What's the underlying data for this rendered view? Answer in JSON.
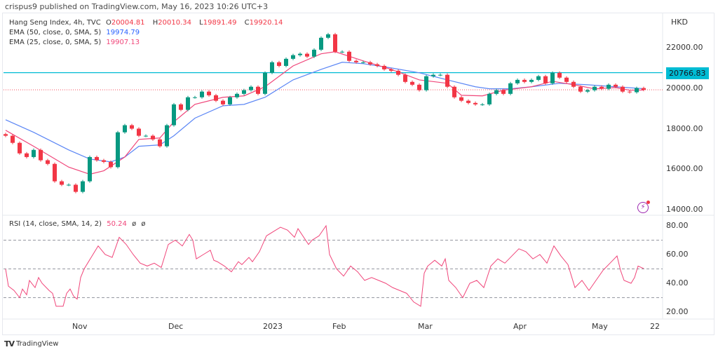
{
  "published": "crispus9 published on TradingView.com, May 16, 2023 10:26 UTC+3",
  "legend": {
    "symbol": "Hang Seng Index, 4h, TVC",
    "o_label": "O",
    "o": "20004.81",
    "h_label": "H",
    "h": "20010.34",
    "l_label": "L",
    "l": "19891.49",
    "c_label": "C",
    "c": "19920.14",
    "ema50_label": "EMA (50, close, 0, SMA, 5)",
    "ema50_value": "19974.79",
    "ema25_label": "EMA (25, close, 0, SMA, 5)",
    "ema25_value": "19907.13",
    "rsi_label": "RSI (14, close, SMA, 14, 2)",
    "rsi_value": "50.24",
    "rsi_extra1": "ø",
    "rsi_extra2": "ø"
  },
  "currency": "HKD",
  "horizontal_line": {
    "value": 20766.83,
    "label": "20766.83",
    "color": "#00bcd4"
  },
  "brand": "TradingView",
  "colors": {
    "up": "#089981",
    "down": "#f23645",
    "ema50": "#5b86f5",
    "ema25": "#f0467a",
    "rsi": "#f0467a"
  },
  "chart_data": [
    {
      "type": "candlestick",
      "title": "Hang Seng Index, 4h, TVC",
      "ylim": [
        14000,
        22600
      ],
      "yticks": [
        "22000.00",
        "20000.00",
        "18000.00",
        "16000.00",
        "14000.00"
      ],
      "ytick_values": [
        22000,
        20000,
        18000,
        16000,
        14000
      ],
      "xticks": [
        {
          "label": "Nov",
          "bar": 10.5
        },
        {
          "label": "Dec",
          "bar": 24.2
        },
        {
          "label": "2023",
          "bar": 37.7
        },
        {
          "label": "Feb",
          "bar": 47.6
        },
        {
          "label": "Mar",
          "bar": 59.8
        },
        {
          "label": "Apr",
          "bar": 73.4
        },
        {
          "label": "May",
          "bar": 84.6
        },
        {
          "label": "22",
          "bar": 92.9
        }
      ],
      "closes": [
        17650,
        17300,
        16780,
        16600,
        16950,
        16440,
        16260,
        15400,
        15230,
        15230,
        14880,
        15400,
        16600,
        16440,
        16360,
        16100,
        17820,
        18170,
        18000,
        17650,
        17650,
        17470,
        17130,
        18170,
        19200,
        18930,
        19550,
        19550,
        19830,
        19650,
        19380,
        19200,
        19550,
        19720,
        19900,
        20070,
        19720,
        20760,
        21280,
        21100,
        21450,
        21630,
        21700,
        21560,
        21900,
        22490,
        22660,
        21800,
        21800,
        21350,
        21280,
        21280,
        21180,
        21100,
        20930,
        20860,
        20660,
        20310,
        20170,
        19900,
        20590,
        20660,
        20660,
        20070,
        19550,
        19380,
        19270,
        19200,
        19200,
        19720,
        19900,
        19720,
        20240,
        20410,
        20310,
        20410,
        20590,
        20240,
        20760,
        20520,
        20310,
        20070,
        19830,
        19900,
        20070,
        19970,
        20170,
        20070,
        19830,
        19800,
        20004.81,
        19920.14
      ],
      "series": [
        {
          "name": "EMA (50, close, 0, SMA, 5)",
          "points": [
            [
              0,
              18440
            ],
            [
              4,
              17820
            ],
            [
              9,
              16950
            ],
            [
              12,
              16500
            ],
            [
              15,
              16360
            ],
            [
              17,
              16600
            ],
            [
              19,
              17130
            ],
            [
              22,
              17200
            ],
            [
              24,
              17650
            ],
            [
              27,
              18520
            ],
            [
              31,
              19130
            ],
            [
              34,
              19200
            ],
            [
              37,
              19550
            ],
            [
              41,
              20410
            ],
            [
              45,
              20930
            ],
            [
              48,
              21280
            ],
            [
              51,
              21210
            ],
            [
              55,
              21000
            ],
            [
              59,
              20760
            ],
            [
              63,
              20410
            ],
            [
              67,
              20070
            ],
            [
              69,
              19970
            ],
            [
              72,
              19970
            ],
            [
              75,
              20070
            ],
            [
              79,
              20240
            ],
            [
              83,
              20170
            ],
            [
              87,
              20070
            ],
            [
              91,
              19974.79
            ]
          ]
        },
        {
          "name": "EMA (25, close, 0, SMA, 5)",
          "points": [
            [
              0,
              17920
            ],
            [
              4,
              17130
            ],
            [
              9,
              16100
            ],
            [
              12,
              15750
            ],
            [
              14,
              15920
            ],
            [
              17,
              16600
            ],
            [
              19,
              17470
            ],
            [
              22,
              17540
            ],
            [
              24,
              18340
            ],
            [
              27,
              19200
            ],
            [
              31,
              19550
            ],
            [
              34,
              19620
            ],
            [
              37,
              20070
            ],
            [
              41,
              21100
            ],
            [
              45,
              21700
            ],
            [
              47,
              21800
            ],
            [
              51,
              21350
            ],
            [
              55,
              20930
            ],
            [
              59,
              20410
            ],
            [
              63,
              20240
            ],
            [
              65,
              19650
            ],
            [
              68,
              19620
            ],
            [
              71,
              19900
            ],
            [
              75,
              20070
            ],
            [
              78,
              20340
            ],
            [
              81,
              20170
            ],
            [
              84,
              19970
            ],
            [
              87,
              20030
            ],
            [
              89,
              19900
            ],
            [
              91,
              19907.13
            ]
          ]
        }
      ]
    },
    {
      "type": "line",
      "title": "RSI (14, close, SMA, 14, 2)",
      "ylim": [
        15,
        85
      ],
      "yticks": [
        "80.00",
        "60.00",
        "40.00",
        "20.00"
      ],
      "ytick_values": [
        80,
        60,
        40,
        20
      ],
      "dashed_levels": [
        70,
        50,
        30
      ],
      "series": [
        {
          "name": "RSI",
          "points": [
            [
              0,
              50
            ],
            [
              0.4,
              38
            ],
            [
              1.2,
              35
            ],
            [
              2,
              30
            ],
            [
              2.4,
              36
            ],
            [
              3,
              32
            ],
            [
              3.4,
              42
            ],
            [
              4.2,
              37
            ],
            [
              4.7,
              44
            ],
            [
              5.2,
              40
            ],
            [
              6.2,
              35
            ],
            [
              6.7,
              33
            ],
            [
              7.2,
              24
            ],
            [
              8.2,
              24
            ],
            [
              8.7,
              33
            ],
            [
              9.2,
              36
            ],
            [
              9.7,
              31
            ],
            [
              10.2,
              29
            ],
            [
              10.7,
              44
            ],
            [
              11.2,
              50
            ],
            [
              12.2,
              58
            ],
            [
              13.2,
              66
            ],
            [
              14.2,
              60
            ],
            [
              15.2,
              58
            ],
            [
              16.2,
              72
            ],
            [
              17.2,
              67
            ],
            [
              18.2,
              60
            ],
            [
              19.2,
              54
            ],
            [
              20.2,
              52
            ],
            [
              21.2,
              54
            ],
            [
              22.2,
              51
            ],
            [
              23.2,
              67
            ],
            [
              24.2,
              70
            ],
            [
              25.2,
              66
            ],
            [
              26.2,
              74
            ],
            [
              26.7,
              70
            ],
            [
              27.2,
              57
            ],
            [
              28.2,
              60
            ],
            [
              29.2,
              63
            ],
            [
              29.7,
              56
            ],
            [
              30.2,
              55
            ],
            [
              31.2,
              52
            ],
            [
              32.2,
              48
            ],
            [
              33.2,
              55
            ],
            [
              33.7,
              53
            ],
            [
              34.7,
              58
            ],
            [
              35.2,
              55
            ],
            [
              36.2,
              62
            ],
            [
              37.2,
              73
            ],
            [
              38.2,
              76
            ],
            [
              39.2,
              79
            ],
            [
              40.2,
              77
            ],
            [
              41.2,
              72
            ],
            [
              41.7,
              78
            ],
            [
              43.2,
              67
            ],
            [
              43.7,
              70
            ],
            [
              44.7,
              73
            ],
            [
              45.7,
              80
            ],
            [
              46.2,
              60
            ],
            [
              47.2,
              50
            ],
            [
              48.2,
              45
            ],
            [
              49.2,
              52
            ],
            [
              50.2,
              48
            ],
            [
              51.2,
              42
            ],
            [
              52.2,
              44
            ],
            [
              53.2,
              42
            ],
            [
              54.2,
              40
            ],
            [
              55.2,
              37
            ],
            [
              56.2,
              35
            ],
            [
              57.2,
              33
            ],
            [
              58.2,
              27
            ],
            [
              59.2,
              24
            ],
            [
              59.7,
              47
            ],
            [
              60.2,
              52
            ],
            [
              61.2,
              56
            ],
            [
              62.2,
              52
            ],
            [
              62.7,
              57
            ],
            [
              63.2,
              42
            ],
            [
              64.2,
              37
            ],
            [
              65.2,
              30
            ],
            [
              66.2,
              40
            ],
            [
              67.2,
              42
            ],
            [
              68.2,
              37
            ],
            [
              69.2,
              52
            ],
            [
              70.2,
              57
            ],
            [
              71.2,
              54
            ],
            [
              72.2,
              59
            ],
            [
              73.2,
              64
            ],
            [
              74.2,
              62
            ],
            [
              75.2,
              57
            ],
            [
              76.2,
              60
            ],
            [
              77.2,
              54
            ],
            [
              78.2,
              66
            ],
            [
              79.2,
              59
            ],
            [
              80.2,
              53
            ],
            [
              81.2,
              37
            ],
            [
              82.2,
              42
            ],
            [
              83.2,
              35
            ],
            [
              84.2,
              42
            ],
            [
              85.2,
              49
            ],
            [
              86.2,
              54
            ],
            [
              87.2,
              59
            ],
            [
              87.7,
              49
            ],
            [
              88.2,
              42
            ],
            [
              89.2,
              40
            ],
            [
              89.7,
              44
            ],
            [
              90.2,
              52
            ],
            [
              91,
              50.24
            ]
          ]
        }
      ]
    }
  ]
}
